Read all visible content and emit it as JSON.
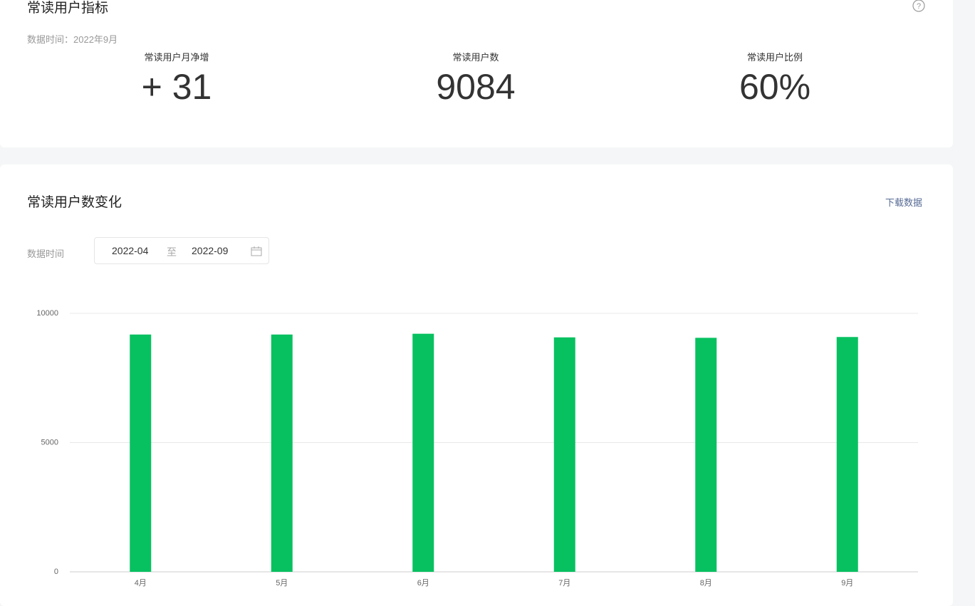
{
  "summary": {
    "title": "常读用户指标",
    "date_label": "数据时间：2022年9月",
    "metrics": [
      {
        "label": "常读用户月净增",
        "value": "+ 31"
      },
      {
        "label": "常读用户数",
        "value": "9084"
      },
      {
        "label": "常读用户比例",
        "value": "60%"
      }
    ]
  },
  "trend": {
    "title": "常读用户数变化",
    "download": "下载数据",
    "date_filter": {
      "label": "数据时间",
      "start": "2022-04",
      "separator": "至",
      "end": "2022-09"
    }
  },
  "chart_data": {
    "type": "bar",
    "categories": [
      "4月",
      "5月",
      "6月",
      "7月",
      "8月",
      "9月"
    ],
    "values": [
      9180,
      9180,
      9210,
      9070,
      9053,
      9084
    ],
    "color": "#07c160",
    "ylim": [
      0,
      10000
    ],
    "yticks": [
      0,
      5000,
      10000
    ],
    "grid": true
  }
}
